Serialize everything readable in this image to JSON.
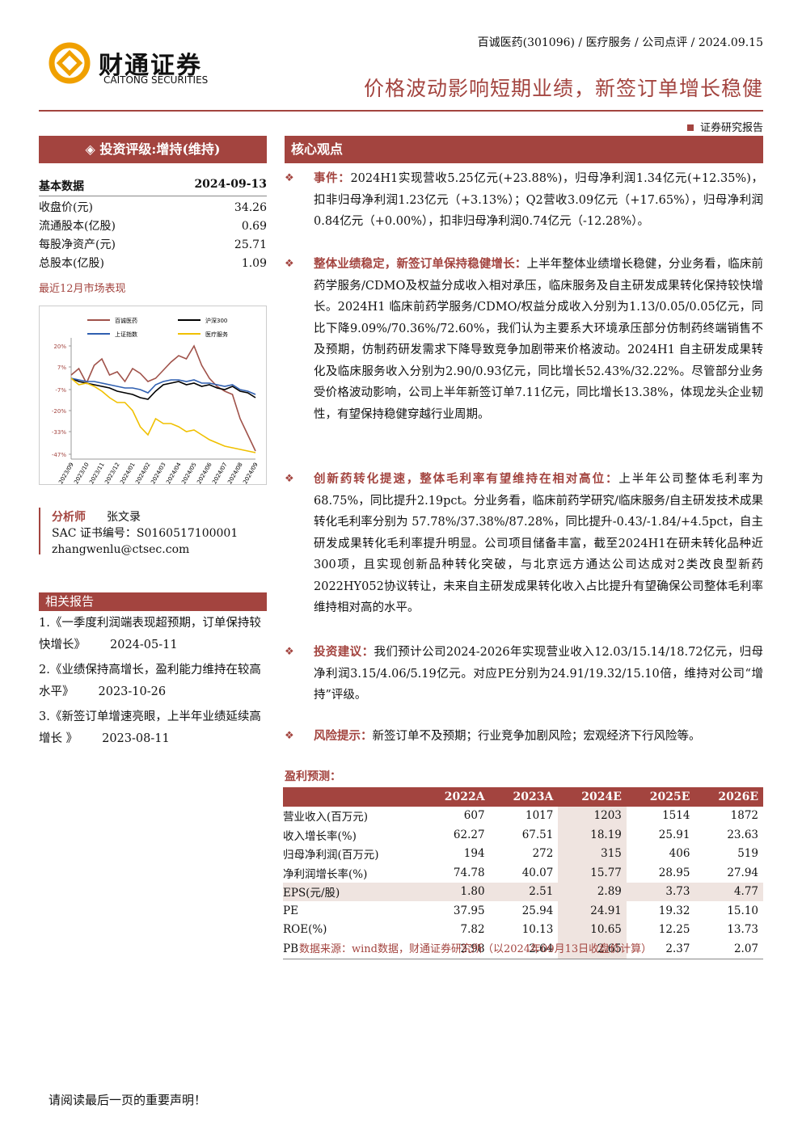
{
  "header": {
    "meta": "百诚医药(301096) / 医疗服务 / 公司点评 / 2024.09.15",
    "logo_cn": "财通证券",
    "logo_en": "CAITONG SECURITIES",
    "title": "价格波动影响短期业绩，新签订单增长稳健",
    "report_type": "证券研究报告"
  },
  "sidebar": {
    "rating": "投资评级:增持(维持)",
    "basic_title": "基本数据",
    "basic_date": "2024-09-13",
    "basic_rows": [
      [
        "收盘价(元)",
        "34.26"
      ],
      [
        "流通股本(亿股)",
        "0.69"
      ],
      [
        "每股净资产(元)",
        "25.71"
      ],
      [
        "总股本(亿股)",
        "1.09"
      ]
    ],
    "market_label": "最近12月市场表现",
    "analyst_label": "分析师",
    "analyst_name": "张文录",
    "sac": "SAC 证书编号：S0160517100001",
    "email": "zhangwenlu@ctsec.com",
    "related_title": "相关报告",
    "related": [
      {
        "title": "1.《一季度利润端表现超预期，订单保持较快增长》",
        "date": "2024-05-11"
      },
      {
        "title": "2.《业绩保持高增长，盈利能力维持在较高水平》",
        "date": "2023-10-26"
      },
      {
        "title": "3.《新签订单增速亮眼，上半年业绩延续高增长 》",
        "date": "2023-08-11"
      }
    ]
  },
  "chart_data": {
    "type": "line",
    "categories": [
      "2023/09",
      null,
      "2023/10",
      null,
      "2023/11",
      null,
      "2023/12",
      null,
      "2024/01",
      null,
      "2024/02",
      null,
      "2024/03",
      null,
      "2024/04",
      null,
      "2024/05",
      null,
      "2024/06",
      null,
      "2024/07",
      null,
      "2024/08",
      null,
      "2024/09"
    ],
    "series": [
      {
        "name": "百诚医药",
        "color": "#a0524a",
        "values": [
          2,
          6,
          -3,
          8,
          12,
          2,
          4,
          -2,
          6,
          3,
          -2,
          0,
          5,
          10,
          14,
          12,
          20,
          8,
          0,
          -5,
          -8,
          -10,
          -25,
          -35,
          -45
        ]
      },
      {
        "name": "沪深300",
        "color": "#000000",
        "values": [
          0,
          -2,
          -3,
          -4,
          -5,
          -6,
          -8,
          -9,
          -10,
          -12,
          -13,
          -8,
          -4,
          -3,
          -2,
          -4,
          -3,
          -5,
          -4,
          -6,
          -7,
          -5,
          -8,
          -9,
          -12
        ]
      },
      {
        "name": "上证指数",
        "color": "#2f5fb0",
        "values": [
          0,
          -1,
          -2,
          -2,
          -3,
          -4,
          -5,
          -6,
          -6,
          -7,
          -9,
          -4,
          -2,
          -1,
          -1,
          -2,
          -1,
          -3,
          -3,
          -4,
          -5,
          -4,
          -7,
          -8,
          -10
        ]
      },
      {
        "name": "医疗服务",
        "color": "#f0c000",
        "values": [
          0,
          -4,
          -3,
          -5,
          -8,
          -12,
          -15,
          -15,
          -20,
          -30,
          -35,
          -25,
          -28,
          -28,
          -30,
          -33,
          -32,
          -35,
          -38,
          -40,
          -42,
          -43,
          -44,
          -45,
          -46
        ]
      }
    ],
    "ylim": [
      -50,
      23
    ],
    "yticks": [
      {
        "value": 20,
        "label": "20%"
      },
      {
        "value": 7,
        "label": "7%"
      },
      {
        "value": -7,
        "label": "-7%"
      },
      {
        "value": -20,
        "label": "-20%"
      },
      {
        "value": -33,
        "label": "-33%"
      },
      {
        "value": -47,
        "label": "-47%"
      }
    ]
  },
  "core": {
    "title": "核心观点",
    "points": [
      {
        "head": "事件：",
        "body": "2024H1实现营收5.25亿元(+23.88%)，归母净利润1.34亿元(+12.35%)，扣非归母净利润1.23亿元（+3.13%）；Q2营收3.09亿元（+17.65%），归母净利润0.84亿元（+0.00%），扣非归母净利润0.74亿元（-12.28%）。"
      },
      {
        "head": "整体业绩稳定，新签订单保持稳健增长：",
        "body": "上半年整体业绩增长稳健，分业务看，临床前药学服务/CDMO及权益分成收入相对承压，临床服务及自主研发成果转化保持较快增长。2024H1 临床前药学服务/CDMO/权益分成收入分别为1.13/0.05/0.05亿元，同比下降9.09%/70.36%/72.60%，我们认为主要系大环境承压部分仿制药终端销售不及预期，仿制药研发需求下降导致竞争加剧带来价格波动。2024H1 自主研发成果转化及临床服务收入分别为2.90/0.93亿元，同比增长52.43%/32.22%。尽管部分业务受价格波动影响，公司上半年新签订单7.11亿元，同比增长13.38%，体现龙头企业韧性，有望保持稳健穿越行业周期。"
      },
      {
        "head": "创新药转化提速，整体毛利率有望维持在相对高位：",
        "body": "上半年公司整体毛利率为68.75%，同比提升2.19pct。分业务看，临床前药学研究/临床服务/自主研发技术成果转化毛利率分别为 57.78%/37.38%/87.28%，同比提升-0.43/-1.84/+4.5pct，自主研发成果转化毛利率提升明显。公司项目储备丰富，截至2024H1在研未转化品种近300项，且实现创新品种转化突破，与北京远方通达公司达成对2类改良型新药2022HY052协议转让，未来自主研发成果转化收入占比提升有望确保公司整体毛利率维持相对高的水平。"
      },
      {
        "head": "投资建议：",
        "body": "我们预计公司2024-2026年实现营业收入12.03/15.14/18.72亿元，归母净利润3.15/4.06/5.19亿元。对应PE分别为24.91/19.32/15.10倍，维持对公司“增持”评级。"
      },
      {
        "head": "风险提示：",
        "body": "新签订单不及预期；行业竞争加剧风险；宏观经济下行风险等。"
      }
    ]
  },
  "forecast": {
    "title": "盈利预测：",
    "header": [
      "2022A",
      "2023A",
      "2024E",
      "2025E",
      "2026E"
    ],
    "rows": [
      [
        "营业收入(百万元)",
        "607",
        "1017",
        "1203",
        "1514",
        "1872"
      ],
      [
        "收入增长率(%)",
        "62.27",
        "67.51",
        "18.19",
        "25.91",
        "23.63"
      ],
      [
        "归母净利润(百万元)",
        "194",
        "272",
        "315",
        "406",
        "519"
      ],
      [
        "净利润增长率(%)",
        "74.78",
        "40.07",
        "15.77",
        "28.95",
        "27.94"
      ],
      [
        "EPS(元/股)",
        "1.80",
        "2.51",
        "2.89",
        "3.73",
        "4.77"
      ],
      [
        "PE",
        "37.95",
        "25.94",
        "24.91",
        "19.32",
        "15.10"
      ],
      [
        "ROE(%)",
        "7.82",
        "10.13",
        "10.65",
        "12.25",
        "13.73"
      ],
      [
        "PB",
        "2.98",
        "2.64",
        "2.65",
        "2.37",
        "2.07"
      ]
    ],
    "source": "数据来源：wind数据，财通证券研究所（以2024年09月13日收盘价计算）"
  },
  "footer": "请阅读最后一页的重要声明！"
}
